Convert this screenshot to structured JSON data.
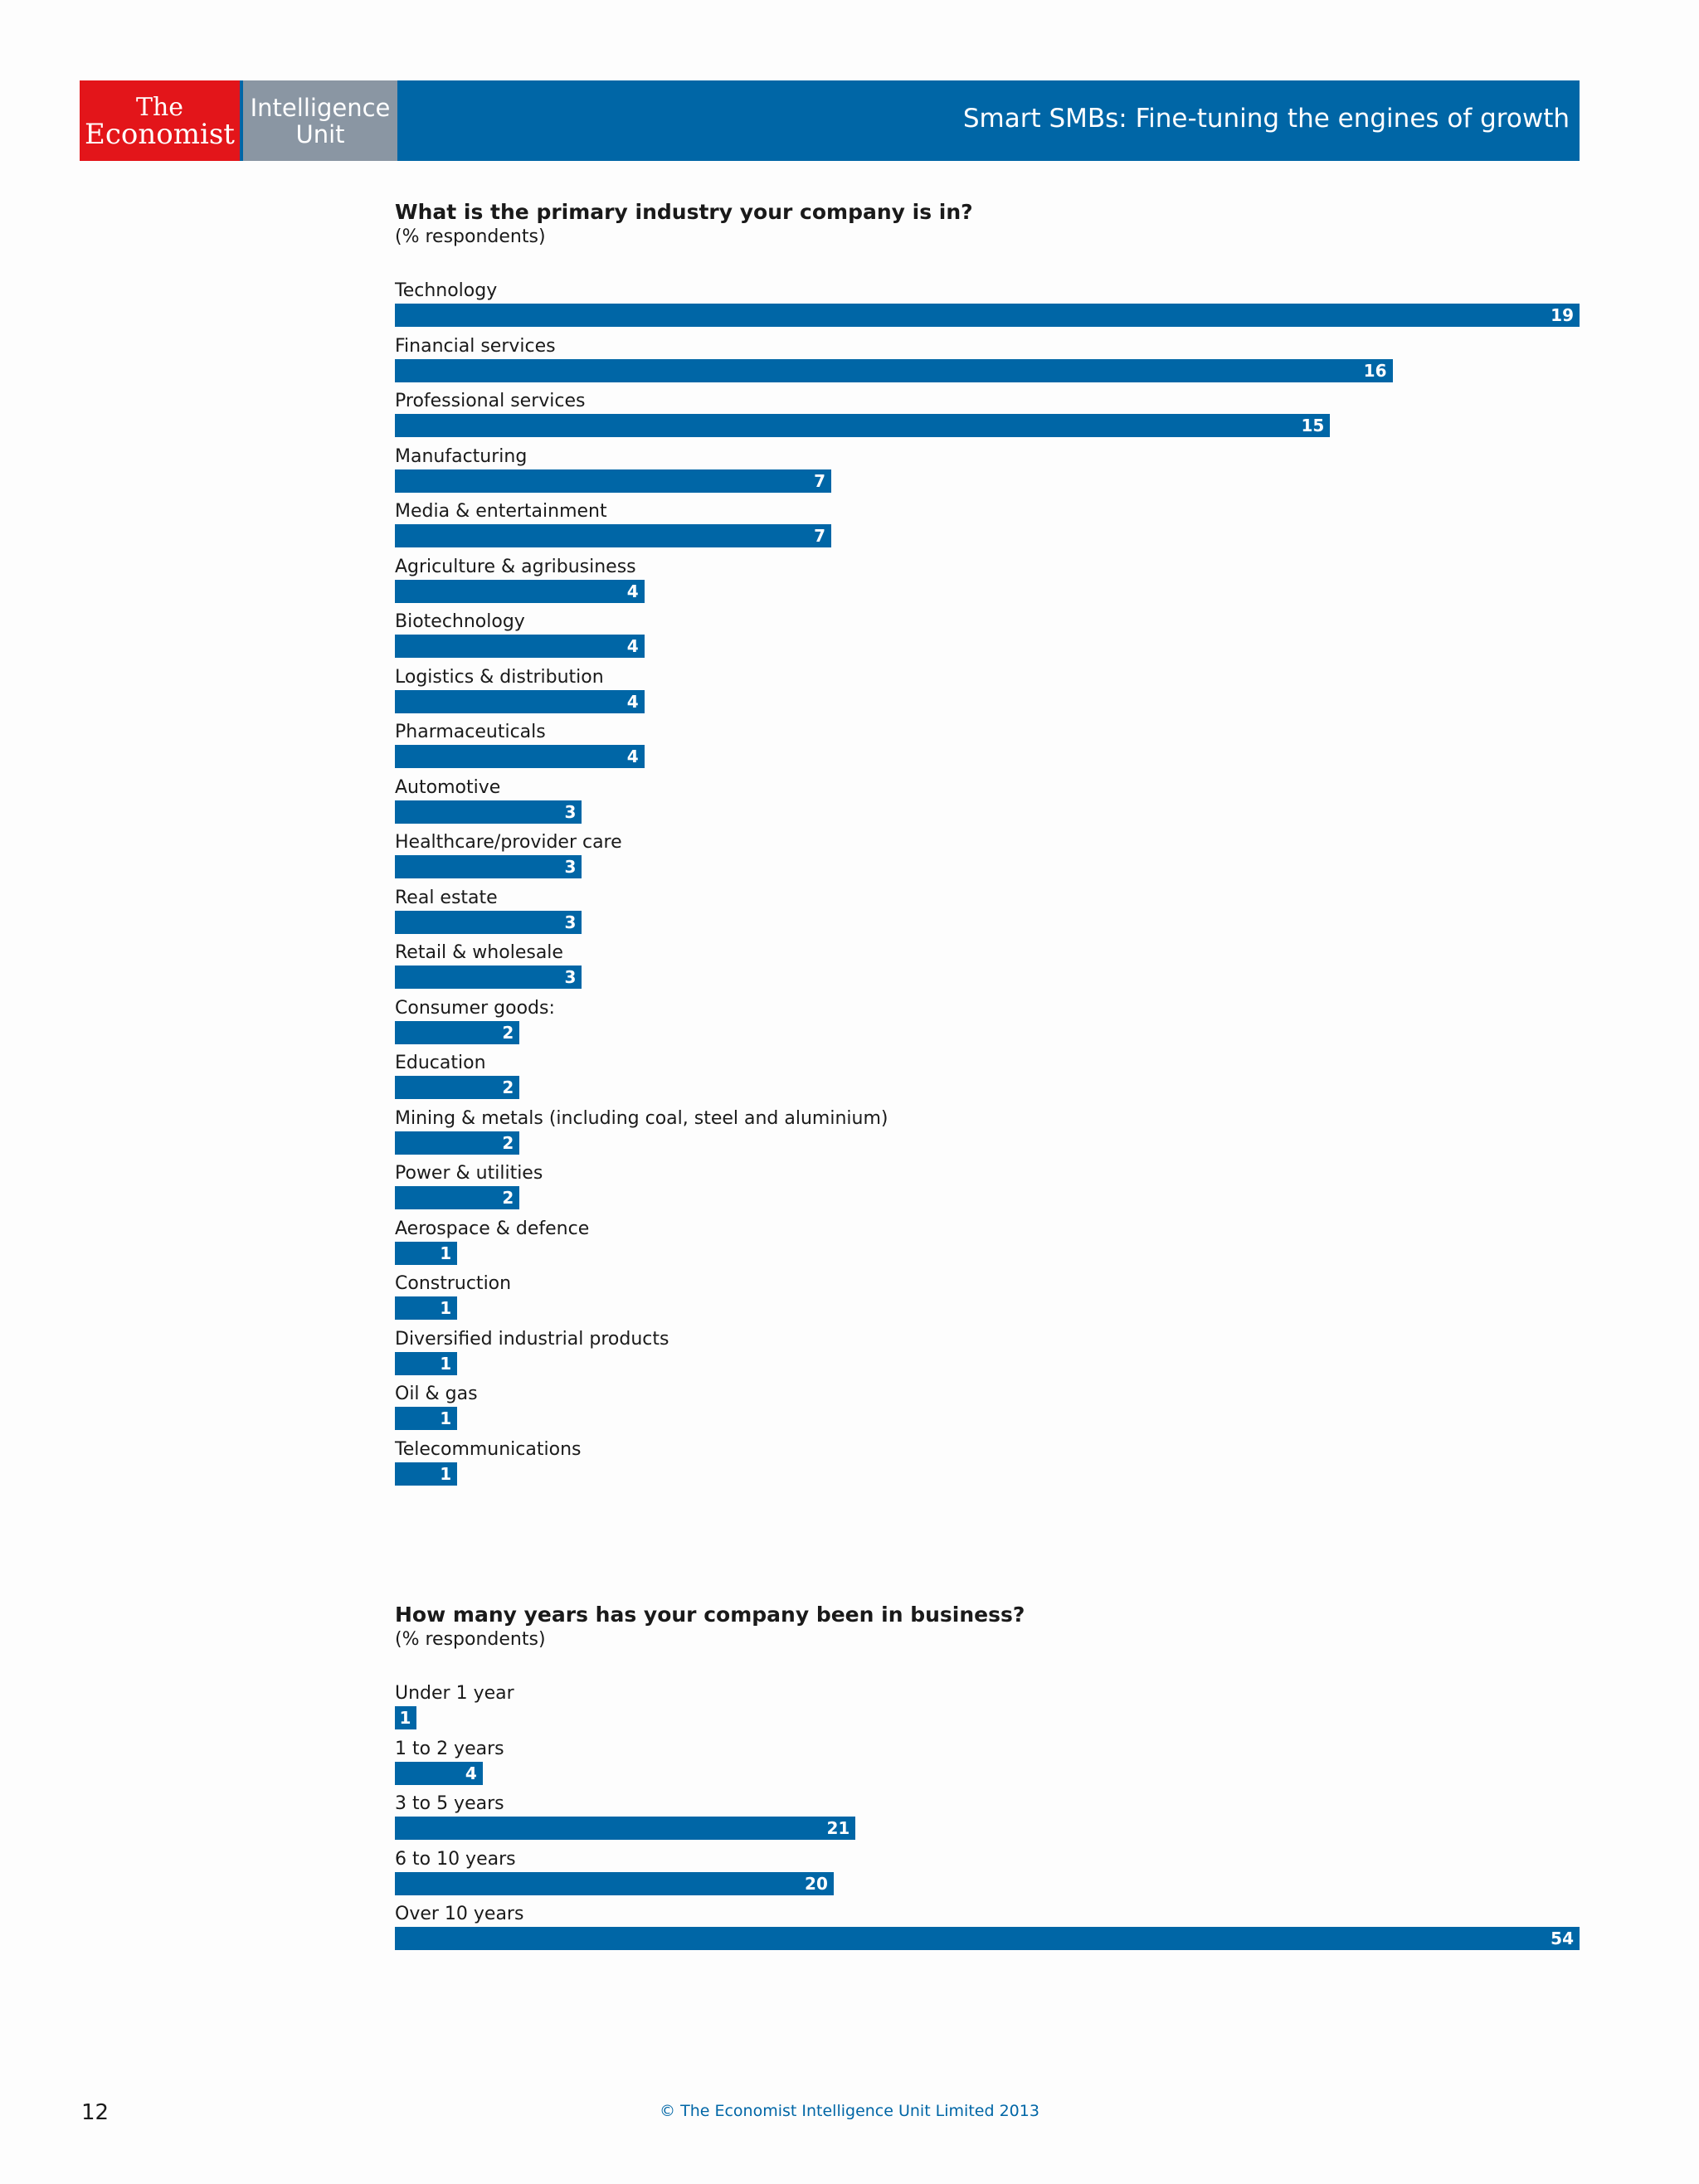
{
  "header": {
    "brand_line1": "The",
    "brand_line2": "Economist",
    "unit_line1": "Intelligence",
    "unit_line2": "Unit",
    "report_title": "Smart SMBs: Fine-tuning the engines of growth",
    "colors": {
      "brand_red": "#e3151a",
      "unit_grey": "#8a96a3",
      "accent_blue": "#0066a6"
    }
  },
  "chart_data": [
    {
      "type": "bar",
      "orientation": "horizontal",
      "title": "What is the primary industry your company is in?",
      "subtitle": "(% respondents)",
      "xlim": [
        0,
        19
      ],
      "categories": [
        "Technology",
        "Financial services",
        "Professional services",
        "Manufacturing",
        "Media & entertainment",
        "Agriculture & agribusiness",
        "Biotechnology",
        "Logistics & distribution",
        "Pharmaceuticals",
        "Automotive",
        "Healthcare/provider care",
        "Real estate",
        "Retail & wholesale",
        "Consumer goods:",
        "Education",
        "Mining & metals (including coal, steel and aluminium)",
        "Power & utilities",
        "Aerospace & defence",
        "Construction",
        "Diversified industrial products",
        "Oil & gas",
        "Telecommunications"
      ],
      "values": [
        19,
        16,
        15,
        7,
        7,
        4,
        4,
        4,
        4,
        3,
        3,
        3,
        3,
        2,
        2,
        2,
        2,
        1,
        1,
        1,
        1,
        1
      ]
    },
    {
      "type": "bar",
      "orientation": "horizontal",
      "title": "How many years has your company been in business?",
      "subtitle": "(% respondents)",
      "xlim": [
        0,
        54
      ],
      "categories": [
        "Under 1 year",
        "1 to 2 years",
        "3 to 5 years",
        "6 to 10 years",
        "Over 10 years"
      ],
      "values": [
        1,
        4,
        21,
        20,
        54
      ]
    }
  ],
  "footer": {
    "page_number": "12",
    "copyright": "© The Economist Intelligence Unit Limited 2013"
  }
}
